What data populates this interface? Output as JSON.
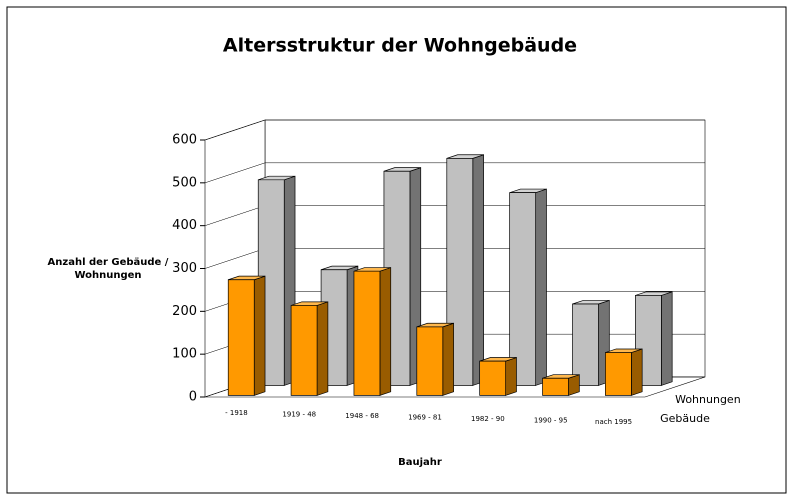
{
  "chart_data": {
    "type": "bar3d",
    "title": "Altersstruktur der Wohngebäude",
    "y_label": "Anzahl der Gebäude / Wohnungen",
    "x_label": "Baujahr",
    "categories": [
      "- 1918",
      "1919 - 48",
      "1948 - 68",
      "1969 - 81",
      "1982 - 90",
      "1990 - 95",
      "nach 1995"
    ],
    "series": [
      {
        "name": "Gebäude",
        "color": "#ff9900",
        "values": [
          270,
          210,
          290,
          160,
          80,
          40,
          100
        ]
      },
      {
        "name": "Wohnungen",
        "color": "#c0c0c0",
        "values": [
          480,
          270,
          500,
          530,
          450,
          190,
          210
        ]
      }
    ],
    "ylim": [
      0,
      600
    ],
    "yticks": [
      0,
      100,
      200,
      300,
      400,
      500,
      600
    ],
    "grid": true
  }
}
